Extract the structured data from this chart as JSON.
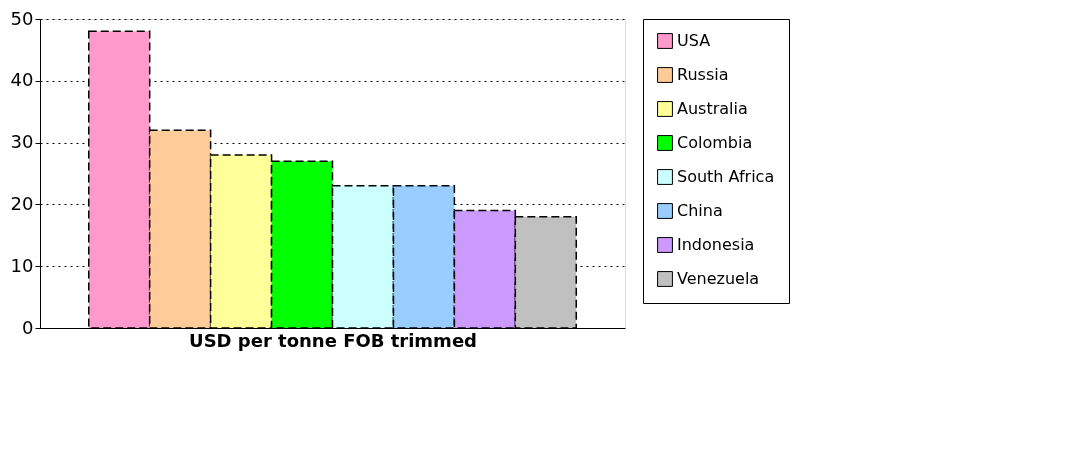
{
  "chart_data": {
    "type": "bar",
    "xlabel": "USD per tonne FOB trimmed",
    "categories": [
      null
    ],
    "series": [
      {
        "name": "USA",
        "color": "#ff99cc",
        "values": [
          48
        ]
      },
      {
        "name": "Russia",
        "color": "#ffcc99",
        "values": [
          32
        ]
      },
      {
        "name": "Australia",
        "color": "#ffff99",
        "values": [
          28
        ]
      },
      {
        "name": "Colombia",
        "color": "#00ff00",
        "values": [
          27
        ]
      },
      {
        "name": "South Africa",
        "color": "#ccffff",
        "values": [
          23
        ]
      },
      {
        "name": "China",
        "color": "#99ccff",
        "values": [
          23
        ]
      },
      {
        "name": "Indonesia",
        "color": "#cc99ff",
        "values": [
          19
        ]
      },
      {
        "name": "Venezuela",
        "color": "#c0c0c0",
        "values": [
          18
        ]
      }
    ],
    "ylim": [
      0,
      50
    ],
    "yticks": [
      0,
      10,
      20,
      30,
      40,
      50
    ],
    "grid": "y",
    "legend": "right"
  }
}
